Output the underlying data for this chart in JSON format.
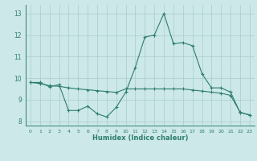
{
  "xlabel": "Humidex (Indice chaleur)",
  "x": [
    0,
    1,
    2,
    3,
    4,
    5,
    6,
    7,
    8,
    9,
    10,
    11,
    12,
    13,
    14,
    15,
    16,
    17,
    18,
    19,
    20,
    21,
    22,
    23
  ],
  "curve1": [
    9.8,
    9.8,
    9.6,
    9.7,
    8.5,
    8.5,
    8.7,
    8.35,
    8.2,
    8.65,
    9.35,
    10.5,
    11.9,
    12.0,
    13.0,
    11.6,
    11.65,
    11.5,
    10.2,
    9.55,
    9.55,
    9.35,
    8.4,
    8.3
  ],
  "curve2": [
    9.8,
    9.75,
    9.65,
    9.62,
    9.55,
    9.5,
    9.46,
    9.42,
    9.38,
    9.34,
    9.5,
    9.5,
    9.5,
    9.5,
    9.5,
    9.5,
    9.5,
    9.45,
    9.4,
    9.35,
    9.3,
    9.2,
    8.42,
    8.28
  ],
  "color": "#2e7d6e",
  "bg_color": "#cce8e8",
  "grid_color": "#aacccc",
  "ylim": [
    7.8,
    13.4
  ],
  "yticks": [
    8,
    9,
    10,
    11,
    12,
    13
  ],
  "xlim": [
    -0.5,
    23.5
  ],
  "figsize": [
    3.2,
    2.0
  ],
  "dpi": 100
}
